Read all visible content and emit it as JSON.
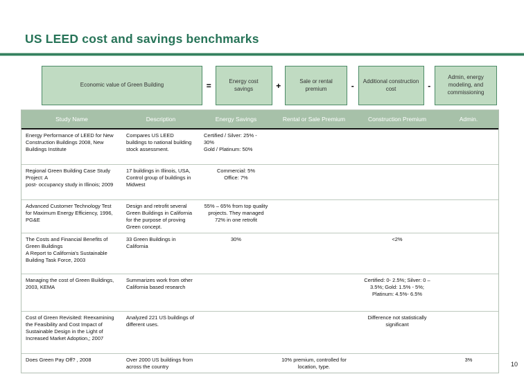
{
  "slide": {
    "title": "US LEED cost and savings benchmarks",
    "page_number": "10"
  },
  "colors": {
    "accent_green": "#267357",
    "rule_green": "#35805f",
    "equation_box_fill": "#c0dbc2",
    "equation_box_border": "#4c8a66",
    "table_header_bg": "#a7c1a9",
    "table_header_text": "#ffffff"
  },
  "equation": {
    "result": "Economic value of Green Building",
    "operators": [
      "=",
      "+",
      "-",
      "-"
    ],
    "terms": [
      "Energy cost savings",
      "Sale or rental premium",
      "Additional construction cost",
      "Admin, energy modeling, and commissioning"
    ]
  },
  "table": {
    "columns": [
      "Study Name",
      "Description",
      "Energy Savings",
      "Rental or Sale Premium",
      "Construction Premium",
      "Admin."
    ],
    "rows": [
      {
        "study_name": "Energy Performance of LEED for New Construction Buildings 2008, New Buildings Institute",
        "description": "Compares US LEED buildings to national building stock assessment.",
        "energy_savings": "Certified / Silver: 25% - 30%\nGold / Platinum: 50%",
        "rental_or_sale_premium": "",
        "construction_premium": "",
        "admin": ""
      },
      {
        "study_name": "Regional Green Building Case Study Project: A\npost- occupancy study in Illinois; 2009",
        "description": "17 buildings in Illinois, USA, Control group of buildings in Midwest",
        "energy_savings": "Commercial: 5%\nOffice: 7%",
        "rental_or_sale_premium": "",
        "construction_premium": "",
        "admin": ""
      },
      {
        "study_name": "Advanced Customer Technology Test for Maximum Energy Efficiency, 1996, PG&E",
        "description": "Design and retrofit several Green Buildings in California for the purpose of proving Green concept.",
        "energy_savings": "55% – 65% from top quality projects. They managed 72% in one retrofit",
        "rental_or_sale_premium": "",
        "construction_premium": "",
        "admin": ""
      },
      {
        "study_name": "The Costs and Financial Benefits of Green Buildings\nA Report to California's Sustainable Building Task Force, 2003",
        "description": "33 Green Buildings in California",
        "energy_savings": "30%",
        "rental_or_sale_premium": "",
        "construction_premium": "<2%",
        "admin": ""
      },
      {
        "study_name": "Managing the cost of Green Buildings, 2003, KEMA",
        "description": "Summarizes work from other California based research",
        "energy_savings": "",
        "rental_or_sale_premium": "",
        "construction_premium": "Certified: 0- 2.5%; Silver: 0 –3.5%; Gold: 1.5% - 5%; Platinum: 4.5%- 6.5%",
        "admin": ""
      },
      {
        "study_name": "Cost of Green Revisited: Reexamining the Feasibility and Cost Impact of Sustainable Design in the Light of Increased Market Adoption,; 2007",
        "description": "Analyzed 221 US buildings of different uses.",
        "energy_savings": "",
        "rental_or_sale_premium": "",
        "construction_premium": "Difference not statistically significant",
        "admin": ""
      },
      {
        "study_name": "Does Green Pay Off? , 2008",
        "description": "Over 2000 US buildings from across the country",
        "energy_savings": "",
        "rental_or_sale_premium": "10% premium, controlled for location, type.",
        "construction_premium": "",
        "admin": "3%"
      }
    ]
  }
}
